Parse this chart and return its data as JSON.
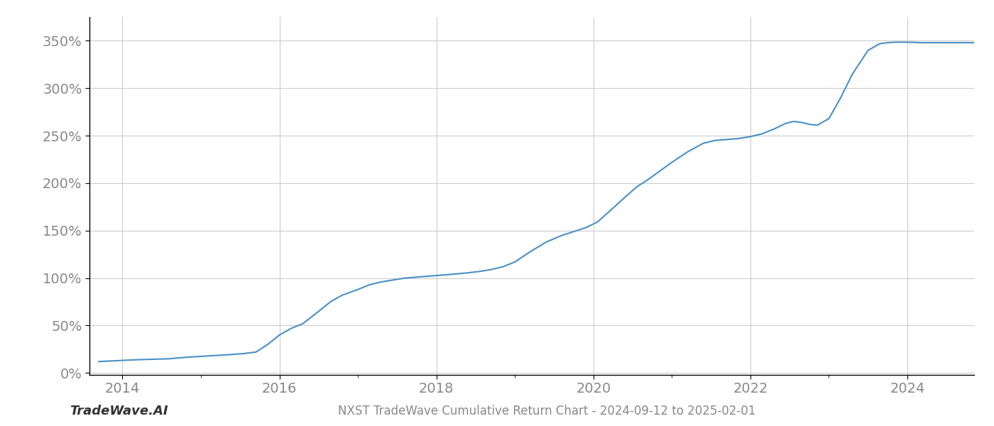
{
  "title": "NXST TradeWave Cumulative Return Chart - 2024-09-12 to 2025-02-01",
  "watermark": "TradeWave.AI",
  "line_color": "#4a90c4",
  "background_color": "#ffffff",
  "grid_color": "#cccccc",
  "xlim": [
    2013.58,
    2024.85
  ],
  "ylim": [
    -0.02,
    3.75
  ],
  "yticks": [
    0.0,
    0.5,
    1.0,
    1.5,
    2.0,
    2.5,
    3.0,
    3.5
  ],
  "xticks": [
    2014,
    2016,
    2018,
    2020,
    2022,
    2024
  ],
  "data_x": [
    2013.7,
    2013.8,
    2013.95,
    2014.05,
    2014.2,
    2014.4,
    2014.6,
    2014.8,
    2015.0,
    2015.2,
    2015.4,
    2015.55,
    2015.7,
    2015.85,
    2016.0,
    2016.15,
    2016.3,
    2016.5,
    2016.65,
    2016.8,
    2017.0,
    2017.15,
    2017.3,
    2017.45,
    2017.6,
    2017.75,
    2017.9,
    2018.05,
    2018.2,
    2018.4,
    2018.55,
    2018.7,
    2018.85,
    2019.0,
    2019.2,
    2019.4,
    2019.6,
    2019.75,
    2019.9,
    2020.05,
    2020.2,
    2020.4,
    2020.55,
    2020.7,
    2020.85,
    2021.0,
    2021.2,
    2021.4,
    2021.55,
    2021.7,
    2021.85,
    2022.0,
    2022.15,
    2022.3,
    2022.45,
    2022.55,
    2022.65,
    2022.75,
    2022.85,
    2023.0,
    2023.15,
    2023.3,
    2023.5,
    2023.65,
    2023.75,
    2023.85,
    2024.0,
    2024.2,
    2024.5,
    2024.85
  ],
  "data_y": [
    0.12,
    0.125,
    0.13,
    0.135,
    0.14,
    0.145,
    0.15,
    0.165,
    0.175,
    0.185,
    0.195,
    0.205,
    0.22,
    0.3,
    0.4,
    0.47,
    0.52,
    0.65,
    0.75,
    0.82,
    0.88,
    0.93,
    0.96,
    0.98,
    1.0,
    1.01,
    1.02,
    1.03,
    1.04,
    1.055,
    1.07,
    1.09,
    1.12,
    1.17,
    1.28,
    1.38,
    1.45,
    1.49,
    1.53,
    1.59,
    1.7,
    1.85,
    1.96,
    2.04,
    2.13,
    2.22,
    2.33,
    2.42,
    2.45,
    2.46,
    2.47,
    2.49,
    2.52,
    2.57,
    2.63,
    2.65,
    2.64,
    2.62,
    2.61,
    2.68,
    2.9,
    3.15,
    3.4,
    3.47,
    3.48,
    3.485,
    3.485,
    3.48,
    3.48,
    3.48
  ],
  "line_width": 1.5,
  "tick_color": "#888888",
  "tick_fontsize": 14,
  "title_fontsize": 12,
  "watermark_fontsize": 13,
  "spine_color": "#000000",
  "bottom_spine_color": "#000000"
}
